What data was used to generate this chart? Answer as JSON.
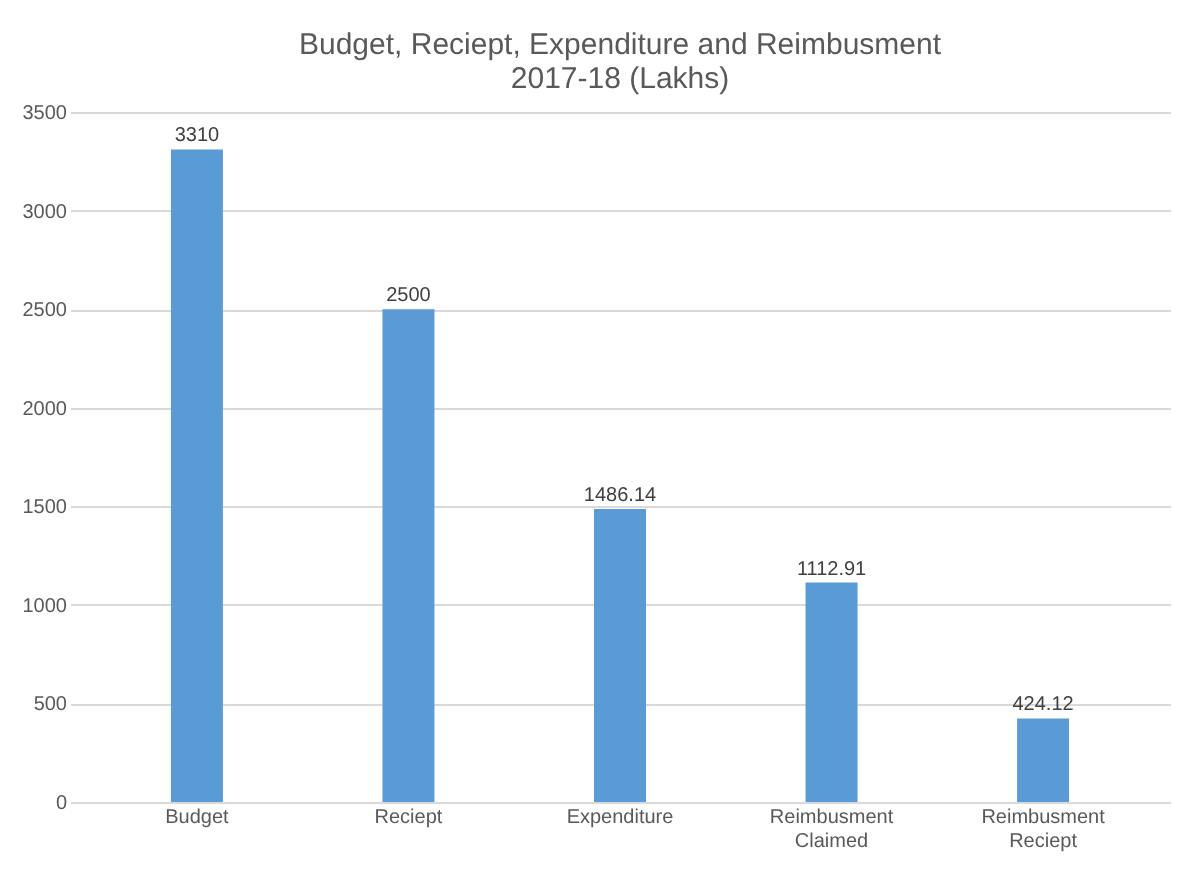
{
  "chart_data": {
    "type": "bar",
    "title": "Budget, Reciept, Expenditure and Reimbusment\n2017-18 (Lakhs)",
    "categories": [
      "Budget",
      "Reciept",
      "Expenditure",
      "Reimbusment Claimed",
      "Reimbusment Reciept"
    ],
    "values": [
      3310,
      2500,
      1486.14,
      1112.91,
      424.12
    ],
    "color": "#5b9bd5",
    "ylim": [
      0,
      3500
    ],
    "yticks": [
      0,
      500,
      1000,
      1500,
      2000,
      2500,
      3000,
      3500
    ],
    "grid": "y",
    "data_labels": true
  }
}
